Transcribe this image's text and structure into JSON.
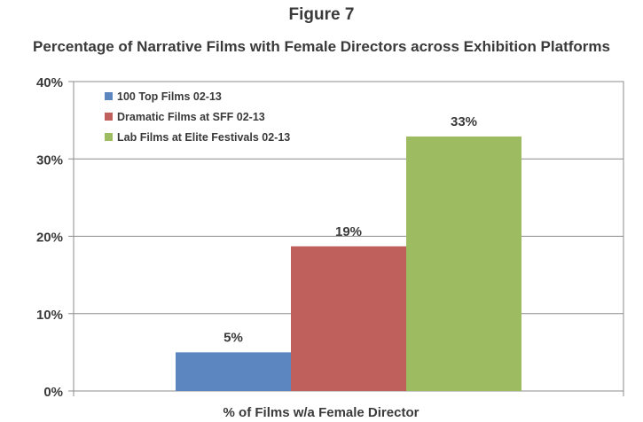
{
  "chart_data": {
    "type": "bar",
    "figure_label": "Figure 7",
    "title": "Percentage of Narrative Films with Female Directors across Exhibition Platforms",
    "xlabel": "% of Films w/a Female Director",
    "ylabel": "",
    "ylim": [
      0,
      40
    ],
    "yticks": [
      "0%",
      "10%",
      "20%",
      "30%",
      "40%"
    ],
    "grid": true,
    "legend_position": "top-left",
    "categories": [
      "% of Films w/a Female Director"
    ],
    "series": [
      {
        "name": "100 Top Films 02-13",
        "values": [
          5
        ],
        "label": "5%",
        "color": "#5b86bf"
      },
      {
        "name": "Dramatic Films at SFF 02-13",
        "values": [
          18.7
        ],
        "label": "19%",
        "color": "#c0605c"
      },
      {
        "name": "Lab Films at Elite Festivals 02-13",
        "values": [
          32.9
        ],
        "label": "33%",
        "color": "#9dbb61"
      }
    ]
  }
}
